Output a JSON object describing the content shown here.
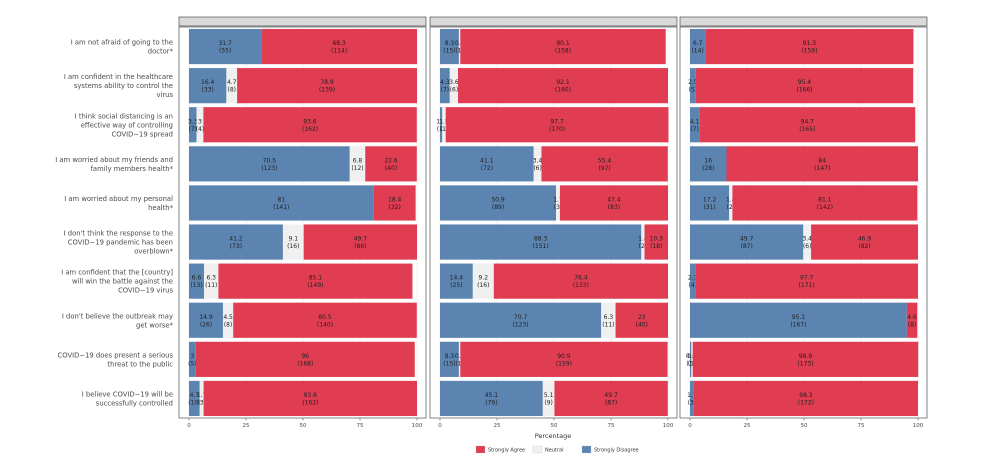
{
  "chart_data": {
    "type": "bar",
    "orientation": "horizontal-stacked",
    "panels": [
      "",
      "",
      ""
    ],
    "statements": [
      [
        "I am not afraid of going to the",
        "doctor*"
      ],
      [
        "I am confident in the healthcare",
        "systems ability to control the",
        "virus"
      ],
      [
        "I think social distancing is an",
        "effective way of controlling",
        "COVID−19 spread"
      ],
      [
        "I am worried about my friends and",
        "family members health*"
      ],
      [
        "I am worried about my personal",
        "health*"
      ],
      [
        "I don't think the response to the",
        "COVID−19 pandemic has been",
        "overblown*"
      ],
      [
        "I am confident that the [country]",
        "will win the battle against the",
        "COVID−19 virus"
      ],
      [
        "I don't believe the outbreak may",
        "get worse*"
      ],
      [
        "COVID−19 does present a serious",
        "threat to the public"
      ],
      [
        "I believe COVID−19 will be",
        "successfully controlled"
      ]
    ],
    "series": [
      {
        "name": "",
        "color": "#5b84b1"
      },
      {
        "name": "Neutral",
        "color": "#f0f0f0"
      },
      {
        "name": "",
        "color": "#e03c52"
      }
    ],
    "values": [
      [
        [
          31.7,
          0.0,
          68.3
        ],
        [
          16.4,
          4.7,
          78.9
        ],
        [
          3.3,
          3.0,
          93.6
        ],
        [
          70.5,
          6.8,
          22.6
        ],
        [
          81.0,
          0.0,
          18.4
        ],
        [
          41.2,
          9.1,
          49.7
        ],
        [
          6.6,
          6.3,
          85.1
        ],
        [
          14.9,
          4.5,
          80.5
        ],
        [
          3.0,
          0.0,
          96.0
        ],
        [
          4.7,
          1.7,
          93.6
        ]
      ],
      [
        [
          8.3,
          0.6,
          90.1
        ],
        [
          4.3,
          3.6,
          92.1
        ],
        [
          1.0,
          1.5,
          97.7
        ],
        [
          41.1,
          3.4,
          55.4
        ],
        [
          50.9,
          1.7,
          47.4
        ],
        [
          88.3,
          1.4,
          10.3
        ],
        [
          14.4,
          9.2,
          76.4
        ],
        [
          70.7,
          6.3,
          23.0
        ],
        [
          8.3,
          0.6,
          90.9
        ],
        [
          45.1,
          5.1,
          49.7
        ]
      ],
      [
        [
          6.7,
          0.0,
          91.3
        ],
        [
          2.5,
          0.0,
          95.4
        ],
        [
          4.1,
          0.0,
          94.7
        ],
        [
          16.0,
          0.0,
          84.0
        ],
        [
          17.2,
          1.4,
          81.1
        ],
        [
          49.7,
          3.4,
          46.9
        ],
        [
          2.3,
          0.0,
          97.7
        ],
        [
          95.1,
          0.0,
          4.6
        ],
        [
          0.6,
          0.6,
          98.9
        ],
        [
          1.7,
          0.0,
          98.3
        ]
      ]
    ],
    "labels": [
      [
        [
          "31.7",
          "(55)"
        ],
        [
          "",
          "",
          ""
        ],
        [
          "68.3",
          "(114)"
        ],
        [
          "16.4",
          "(33)"
        ],
        [
          "4.7",
          "(8)"
        ],
        [
          "78.9",
          "(139)"
        ],
        [
          "3.3",
          "(7)"
        ],
        [
          "3",
          "(4)"
        ],
        [
          "93.6",
          "(162)"
        ],
        [
          "70.5",
          "(123)"
        ],
        [
          "6.8",
          "(12)"
        ],
        [
          "22.6",
          "(40)"
        ],
        [
          "81",
          "(141)"
        ],
        [
          "",
          ""
        ],
        [
          "18.4",
          "(32)"
        ],
        [
          "41.2",
          "(73)"
        ],
        [
          "9.1",
          "(16)"
        ],
        [
          "49.7",
          "(86)"
        ],
        [
          "6.6",
          "(13)"
        ],
        [
          "6.3",
          "(11)"
        ],
        [
          "85.1",
          "(149)"
        ],
        [
          "14.9",
          "(26)"
        ],
        [
          "4.5",
          "(8)"
        ],
        [
          "80.5",
          "(140)"
        ],
        [
          "3",
          "(5)"
        ],
        [
          "",
          ""
        ],
        [
          "96",
          "(168)"
        ],
        [
          "4.7",
          "(10)"
        ],
        [
          "1.7",
          "(3)"
        ],
        [
          "93.6",
          "(162)"
        ]
      ],
      [
        [
          "8.3",
          "(15)"
        ],
        [
          "0.6",
          "(1)"
        ],
        [
          "90.1",
          "(158)"
        ],
        [
          "4.3",
          "(7)"
        ],
        [
          "3.6",
          "(6)"
        ],
        [
          "92.1",
          "(160)"
        ],
        [
          "1.0",
          "(1)"
        ],
        [
          "1.5",
          "(1)"
        ],
        [
          "97.7",
          "(170)"
        ],
        [
          "41.1",
          "(72)"
        ],
        [
          "3.4",
          "(6)"
        ],
        [
          "55.4",
          "(97)"
        ],
        [
          "50.9",
          "(89)"
        ],
        [
          "1.7",
          "(3)"
        ],
        [
          "47.4",
          "(83)"
        ],
        [
          "88.3",
          "(151)"
        ],
        [
          "1.4",
          "(2)"
        ],
        [
          "10.3",
          "(18)"
        ],
        [
          "14.4",
          "(25)"
        ],
        [
          "9.2",
          "(16)"
        ],
        [
          "76.4",
          "(133)"
        ],
        [
          "70.7",
          "(123)"
        ],
        [
          "6.3",
          "(11)"
        ],
        [
          "23",
          "(40)"
        ],
        [
          "8.3",
          "(15)"
        ],
        [
          "0.6",
          "(1)"
        ],
        [
          "90.9",
          "(159)"
        ],
        [
          "45.1",
          "(79)"
        ],
        [
          "5.1",
          "(9)"
        ],
        [
          "49.7",
          "(87)"
        ]
      ],
      [
        [
          "6.7",
          "(14)"
        ],
        [
          "",
          ""
        ],
        [
          "91.3",
          "(159)"
        ],
        [
          "2.5",
          "(5)"
        ],
        [
          "",
          ""
        ],
        [
          "95.4",
          "(166)"
        ],
        [
          "4.1",
          "(7)"
        ],
        [
          "",
          ""
        ],
        [
          "94.7",
          "(165)"
        ],
        [
          "16",
          "(28)"
        ],
        [
          "",
          ""
        ],
        [
          "84",
          "(147)"
        ],
        [
          "17.2",
          "(31)"
        ],
        [
          "1.4",
          "(2)"
        ],
        [
          "81.1",
          "(142)"
        ],
        [
          "49.7",
          "(87)"
        ],
        [
          "3.4",
          "(6)"
        ],
        [
          "46.9",
          "(82)"
        ],
        [
          "2.3",
          "(4)"
        ],
        [
          "",
          ""
        ],
        [
          "97.7",
          "(171)"
        ],
        [
          "95.1",
          "(167)"
        ],
        [
          "",
          ""
        ],
        [
          "4.6",
          "(8)"
        ],
        [
          "0.6",
          "(1)"
        ],
        [
          "0.6",
          "(1)"
        ],
        [
          "98.9",
          "(173)"
        ],
        [
          "1.7",
          "(3)"
        ],
        [
          "",
          ""
        ],
        [
          "98.3",
          "(172)"
        ]
      ]
    ],
    "xticks": [
      "0",
      "25",
      "50",
      "75",
      "100"
    ],
    "xlim": [
      0,
      100
    ],
    "xlabel": "Percentage",
    "legend": [
      "Strongly Agree",
      "Neutral",
      "Strongly Disagree"
    ],
    "legend_position": "bottom"
  }
}
